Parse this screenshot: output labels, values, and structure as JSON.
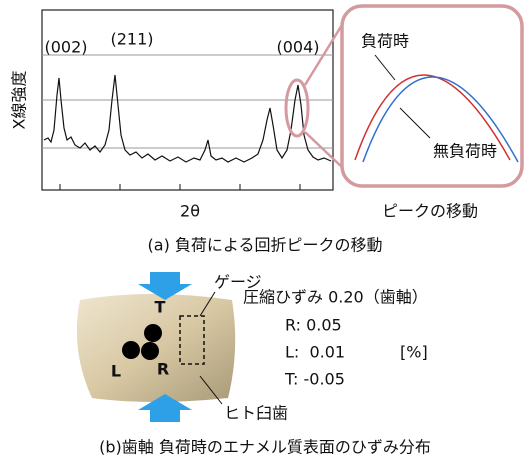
{
  "panel_a": {
    "y_label": "X線強度",
    "x_label": "2θ",
    "peak_labels": [
      "(002)",
      "(211)",
      "(004)"
    ],
    "inset": {
      "loaded": "負荷時",
      "unloaded": "無負荷時",
      "caption": "ピークの移動"
    },
    "caption": "(a) 負荷による回折ピークの移動"
  },
  "panel_b": {
    "gauge": "ゲージ",
    "points": [
      "T",
      "L",
      "R"
    ],
    "specimen": "ヒト臼歯",
    "strain_title": "圧縮ひずみ 0.20（歯軸）",
    "strains": [
      "R: 0.05",
      "L:  0.01",
      "T: -0.05"
    ],
    "unit": "[%]",
    "caption": "(b)歯軸 負荷時のエナメル質表面のひずみ分布"
  }
}
